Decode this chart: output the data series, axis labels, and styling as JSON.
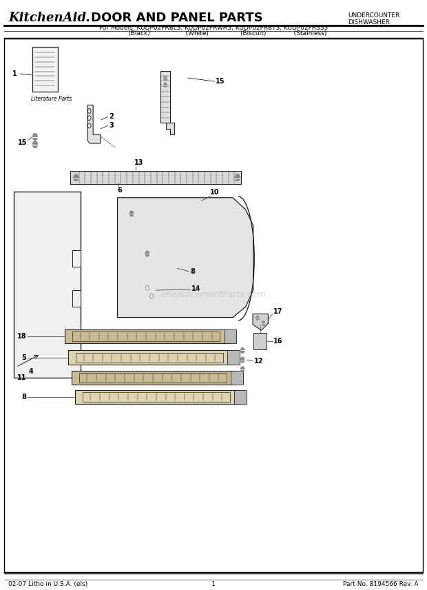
{
  "title_kitchenaid": "KitchenAid",
  "title_dot": ".",
  "title_main": " DOOR AND PANEL PARTS",
  "subtitle_label": "For Models: KUDP02FRBL3, KUDP02FRWH3, KUDP02FRBT3, KUDP02FRSS3",
  "subtitle_colors": "              (Black)                  (White)                (Biscuit)              (Stainless)",
  "upper_right_line1": "UNDERCOUNTER",
  "upper_right_line2": "DISHWASHER",
  "footer_left": "02-07 Litho in U.S.A. (els)",
  "footer_center": "1",
  "footer_right": "Part No. 8194566 Rev. A",
  "watermark": "eReplacementParts.com",
  "bg_color": "#ffffff",
  "line_color": "#222222"
}
